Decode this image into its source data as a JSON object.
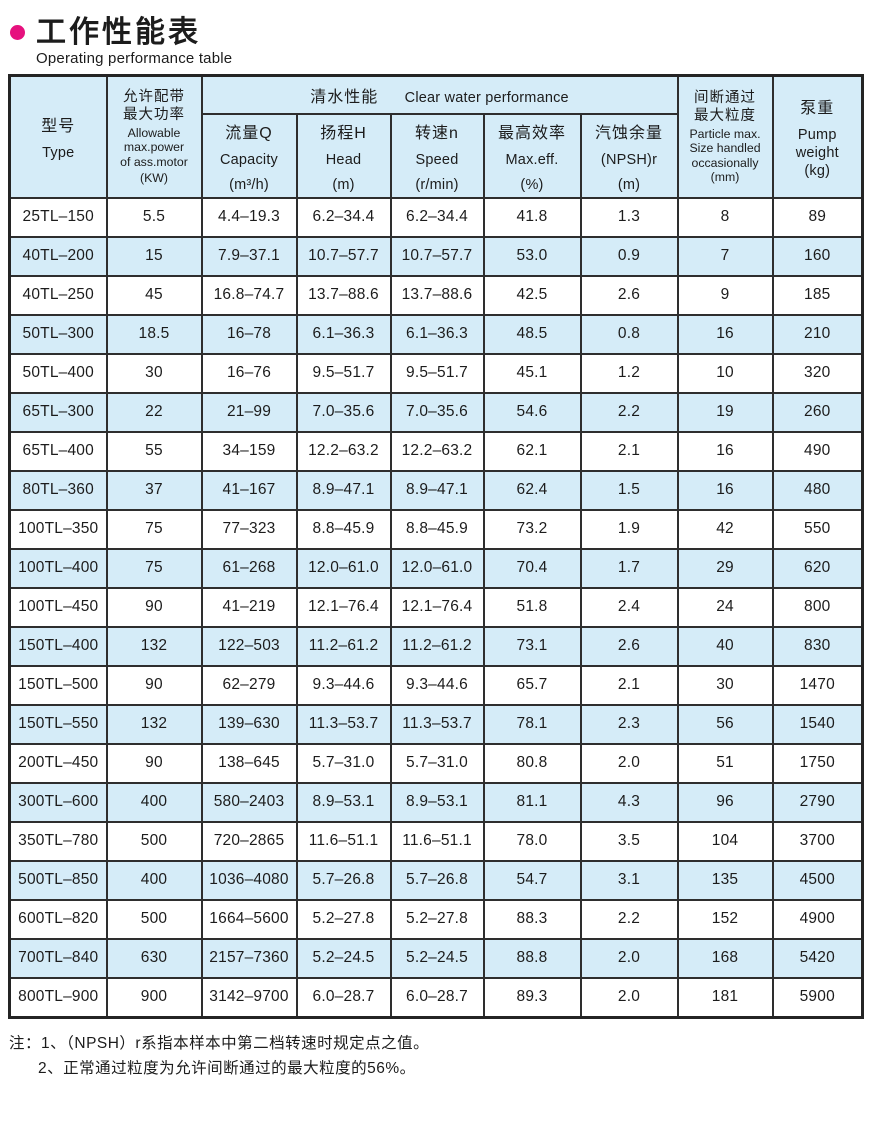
{
  "page": {
    "title_zh": "工作性能表",
    "title_en": "Operating performance table",
    "accent_color": "#e6117e",
    "row_alt_color": "#d5ecf8"
  },
  "table": {
    "header": {
      "type": {
        "zh": "型号",
        "en": "Type"
      },
      "power": {
        "zh1": "允许配带",
        "zh2": "最大功率",
        "en1": "Allowable",
        "en2": "max.power",
        "en3": "of ass.motor",
        "unit": "(KW)"
      },
      "clear_water": {
        "zh": "清水性能",
        "en": "Clear water performance"
      },
      "capacity": {
        "zh": "流量Q",
        "en": "Capacity",
        "unit": "(m³/h)"
      },
      "head": {
        "zh": "扬程H",
        "en": "Head",
        "unit": "(m)"
      },
      "speed": {
        "zh": "转速n",
        "en": "Speed",
        "unit": "(r/min)"
      },
      "max_eff": {
        "zh": "最高效率",
        "en": "Max.eff.",
        "unit": "(%)"
      },
      "npsh": {
        "zh": "汽蚀余量",
        "en": "(NPSH)r",
        "unit": "(m)"
      },
      "particle": {
        "zh1": "间断通过",
        "zh2": "最大粒度",
        "en1": "Particle max.",
        "en2": "Size handled",
        "en3": "occasionally",
        "unit": "(mm)"
      },
      "weight": {
        "zh": "泵重",
        "en1": "Pump",
        "en2": "weight",
        "unit": "(kg)"
      }
    },
    "rows": [
      [
        "25TL–150",
        "5.5",
        "4.4–19.3",
        "6.2–34.4",
        "6.2–34.4",
        "41.8",
        "1.3",
        "8",
        "89"
      ],
      [
        "40TL–200",
        "15",
        "7.9–37.1",
        "10.7–57.7",
        "10.7–57.7",
        "53.0",
        "0.9",
        "7",
        "160"
      ],
      [
        "40TL–250",
        "45",
        "16.8–74.7",
        "13.7–88.6",
        "13.7–88.6",
        "42.5",
        "2.6",
        "9",
        "185"
      ],
      [
        "50TL–300",
        "18.5",
        "16–78",
        "6.1–36.3",
        "6.1–36.3",
        "48.5",
        "0.8",
        "16",
        "210"
      ],
      [
        "50TL–400",
        "30",
        "16–76",
        "9.5–51.7",
        "9.5–51.7",
        "45.1",
        "1.2",
        "10",
        "320"
      ],
      [
        "65TL–300",
        "22",
        "21–99",
        "7.0–35.6",
        "7.0–35.6",
        "54.6",
        "2.2",
        "19",
        "260"
      ],
      [
        "65TL–400",
        "55",
        "34–159",
        "12.2–63.2",
        "12.2–63.2",
        "62.1",
        "2.1",
        "16",
        "490"
      ],
      [
        "80TL–360",
        "37",
        "41–167",
        "8.9–47.1",
        "8.9–47.1",
        "62.4",
        "1.5",
        "16",
        "480"
      ],
      [
        "100TL–350",
        "75",
        "77–323",
        "8.8–45.9",
        "8.8–45.9",
        "73.2",
        "1.9",
        "42",
        "550"
      ],
      [
        "100TL–400",
        "75",
        "61–268",
        "12.0–61.0",
        "12.0–61.0",
        "70.4",
        "1.7",
        "29",
        "620"
      ],
      [
        "100TL–450",
        "90",
        "41–219",
        "12.1–76.4",
        "12.1–76.4",
        "51.8",
        "2.4",
        "24",
        "800"
      ],
      [
        "150TL–400",
        "132",
        "122–503",
        "11.2–61.2",
        "11.2–61.2",
        "73.1",
        "2.6",
        "40",
        "830"
      ],
      [
        "150TL–500",
        "90",
        "62–279",
        "9.3–44.6",
        "9.3–44.6",
        "65.7",
        "2.1",
        "30",
        "1470"
      ],
      [
        "150TL–550",
        "132",
        "139–630",
        "11.3–53.7",
        "11.3–53.7",
        "78.1",
        "2.3",
        "56",
        "1540"
      ],
      [
        "200TL–450",
        "90",
        "138–645",
        "5.7–31.0",
        "5.7–31.0",
        "80.8",
        "2.0",
        "51",
        "1750"
      ],
      [
        "300TL–600",
        "400",
        "580–2403",
        "8.9–53.1",
        "8.9–53.1",
        "81.1",
        "4.3",
        "96",
        "2790"
      ],
      [
        "350TL–780",
        "500",
        "720–2865",
        "11.6–51.1",
        "11.6–51.1",
        "78.0",
        "3.5",
        "104",
        "3700"
      ],
      [
        "500TL–850",
        "400",
        "1036–4080",
        "5.7–26.8",
        "5.7–26.8",
        "54.7",
        "3.1",
        "135",
        "4500"
      ],
      [
        "600TL–820",
        "500",
        "1664–5600",
        "5.2–27.8",
        "5.2–27.8",
        "88.3",
        "2.2",
        "152",
        "4900"
      ],
      [
        "700TL–840",
        "630",
        "2157–7360",
        "5.2–24.5",
        "5.2–24.5",
        "88.8",
        "2.0",
        "168",
        "5420"
      ],
      [
        "800TL–900",
        "900",
        "3142–9700",
        "6.0–28.7",
        "6.0–28.7",
        "89.3",
        "2.0",
        "181",
        "5900"
      ]
    ]
  },
  "notes": {
    "line1": "注：1、（NPSH）r系指本样本中第二档转速时规定点之值。",
    "line2": "2、正常通过粒度为允许间断通过的最大粒度的56%。"
  }
}
